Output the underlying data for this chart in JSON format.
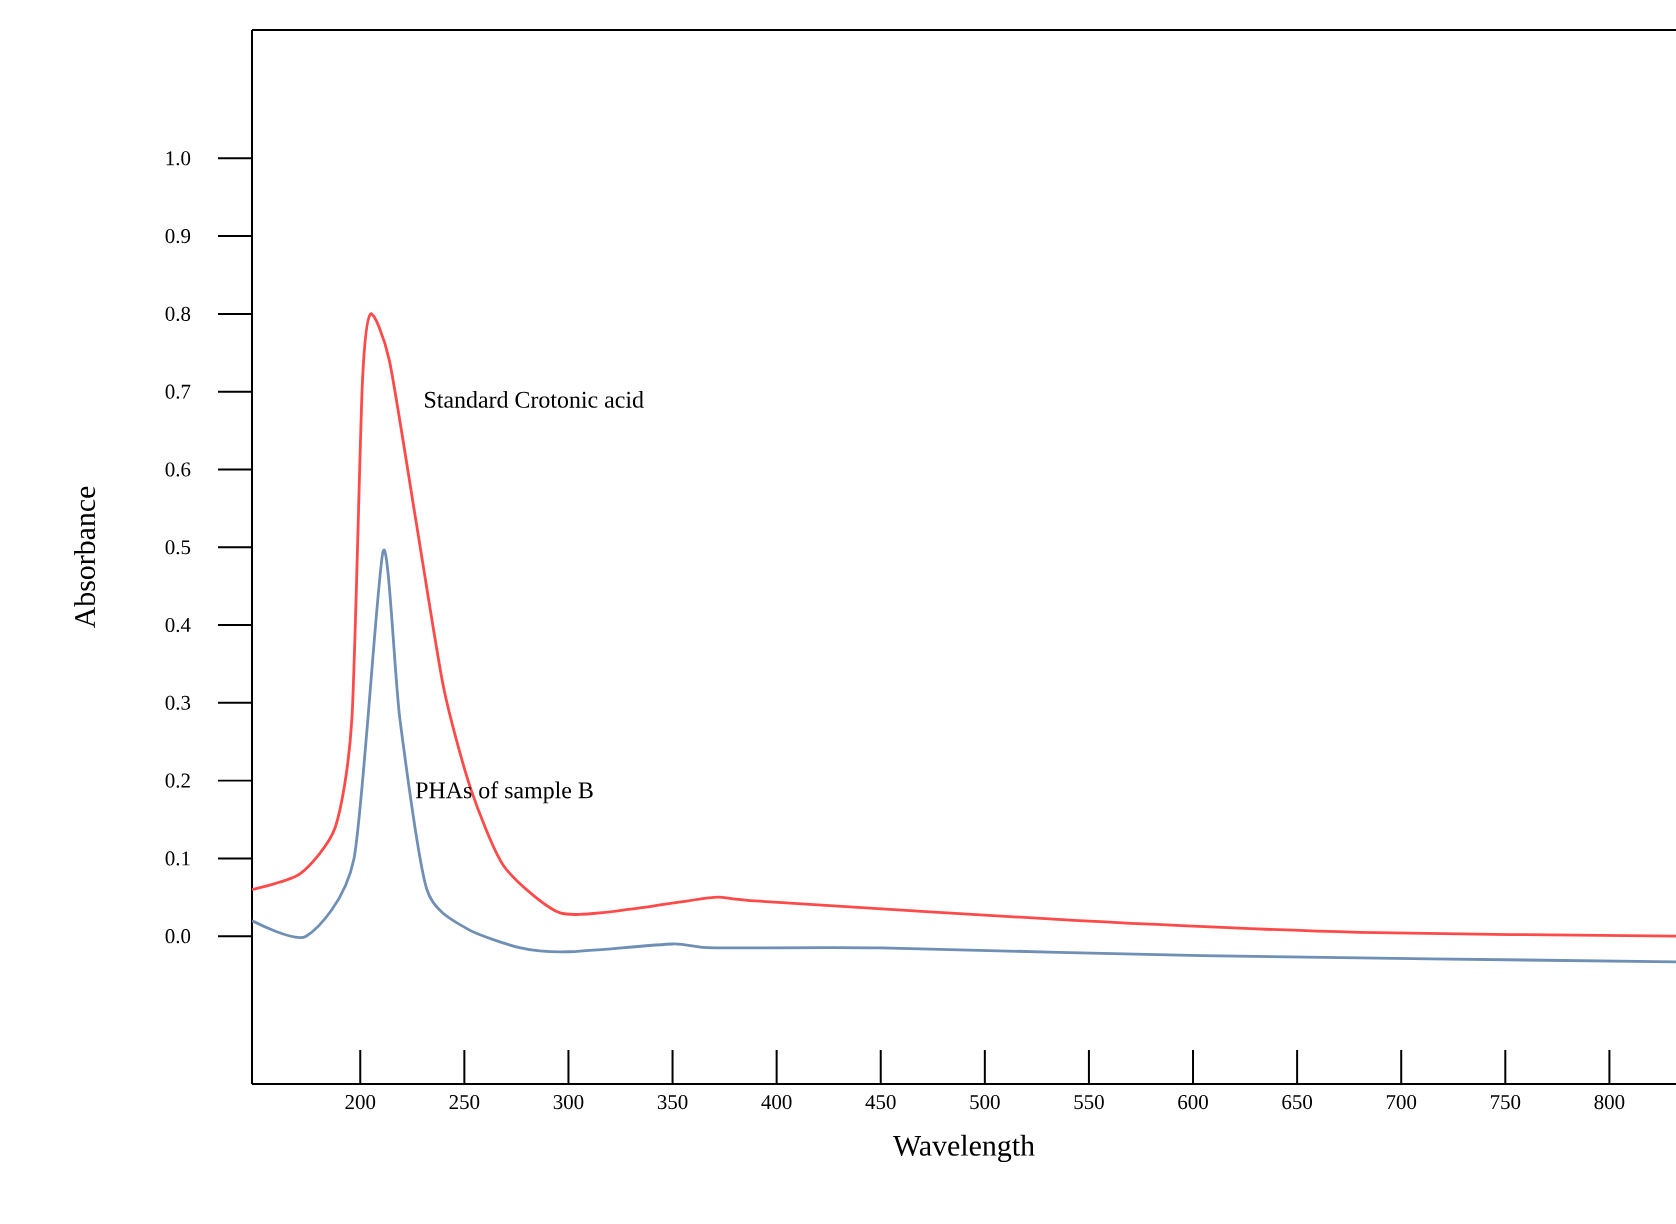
{
  "chart_data": {
    "type": "line",
    "xlabel": "Wavelength",
    "ylabel": "Absorbance",
    "xlim": [
      148,
      832
    ],
    "ylim": [
      -0.19,
      1.165
    ],
    "xticks": [
      200,
      250,
      300,
      350,
      400,
      450,
      500,
      550,
      600,
      650,
      700,
      750,
      800
    ],
    "yticks": [
      {
        "value": 0,
        "label": "0.0"
      },
      0.1,
      0.2,
      0.3,
      0.4,
      0.5,
      0.6,
      0.7,
      0.8,
      0.9,
      {
        "value": 1,
        "label": "1.0"
      }
    ],
    "grid": false,
    "legend": false,
    "marker": "none",
    "line_style": "solid",
    "series": [
      {
        "name": "Standard Crotonic acid",
        "color": "#ff4a4a",
        "x": [
          148,
          171,
          188,
          196,
          201,
          205,
          214,
          227,
          240,
          253,
          269,
          296,
          331,
          370,
          392,
          545,
          680,
          832
        ],
        "values": [
          0.06,
          0.08,
          0.14,
          0.28,
          0.71,
          0.8,
          0.74,
          0.53,
          0.32,
          0.19,
          0.09,
          0.03,
          0.035,
          0.05,
          0.045,
          0.02,
          0.005,
          0.0
        ]
      },
      {
        "name": "PHAs of sample B",
        "color": "#6f8fb5",
        "x": [
          148,
          174,
          197,
          211,
          219,
          232,
          251,
          277,
          300,
          350,
          370,
          450,
          604,
          832
        ],
        "values": [
          0.02,
          0.0,
          0.1,
          0.495,
          0.28,
          0.06,
          0.01,
          -0.015,
          -0.02,
          -0.01,
          -0.015,
          -0.015,
          -0.025,
          -0.033
        ]
      }
    ]
  }
}
